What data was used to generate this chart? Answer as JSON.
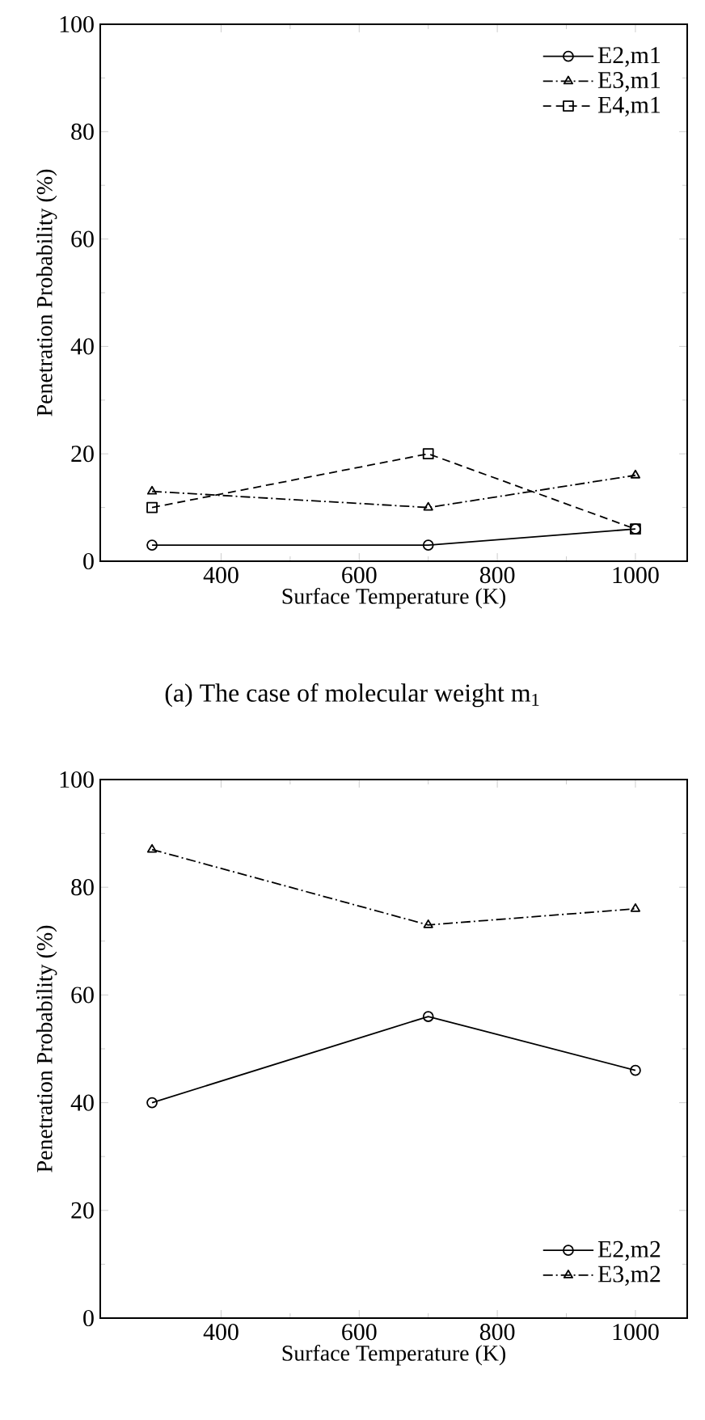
{
  "chart_data": [
    {
      "type": "line",
      "xlabel": "Surface  Temperature (K)",
      "ylabel": "Penetration Probability (%)",
      "xlim": [
        225,
        1075
      ],
      "ylim": [
        0,
        100
      ],
      "xticks": [
        400,
        600,
        800,
        1000
      ],
      "yticks": [
        0,
        20,
        40,
        60,
        80,
        100
      ],
      "grid": false,
      "legend": "top right",
      "series": [
        {
          "name": "E2,m1",
          "color": "#000000",
          "x": [
            300,
            700,
            1000
          ],
          "values": [
            3,
            3,
            6
          ],
          "marker": "circle",
          "line_style": "solid"
        },
        {
          "name": "E3,m1",
          "color": "#000000",
          "x": [
            300,
            700,
            1000
          ],
          "values": [
            13,
            10,
            16
          ],
          "marker": "triangle",
          "line_style": "dashdot"
        },
        {
          "name": "E4,m1",
          "color": "#000000",
          "x": [
            300,
            700,
            1000
          ],
          "values": [
            10,
            20,
            6
          ],
          "marker": "square",
          "line_style": "dashed"
        }
      ],
      "annotations": [
        "(a) The case of molecular weight m$_{1}$"
      ]
    },
    {
      "type": "line",
      "xlabel": "Surface Temperature (K)",
      "ylabel": "Penetration Probability (%)",
      "xlim": [
        225,
        1075
      ],
      "ylim": [
        0,
        100
      ],
      "xticks": [
        400,
        600,
        800,
        1000
      ],
      "yticks": [
        0,
        20,
        40,
        60,
        80,
        100
      ],
      "grid": false,
      "legend": "bottom right",
      "series": [
        {
          "name": "E2,m2",
          "color": "#000000",
          "x": [
            300,
            700,
            1000
          ],
          "values": [
            40,
            56,
            46
          ],
          "marker": "circle",
          "line_style": "solid"
        },
        {
          "name": "E3,m2",
          "color": "#000000",
          "x": [
            300,
            700,
            1000
          ],
          "values": [
            87,
            73,
            76
          ],
          "marker": "triangle",
          "line_style": "dashdot"
        }
      ]
    }
  ]
}
